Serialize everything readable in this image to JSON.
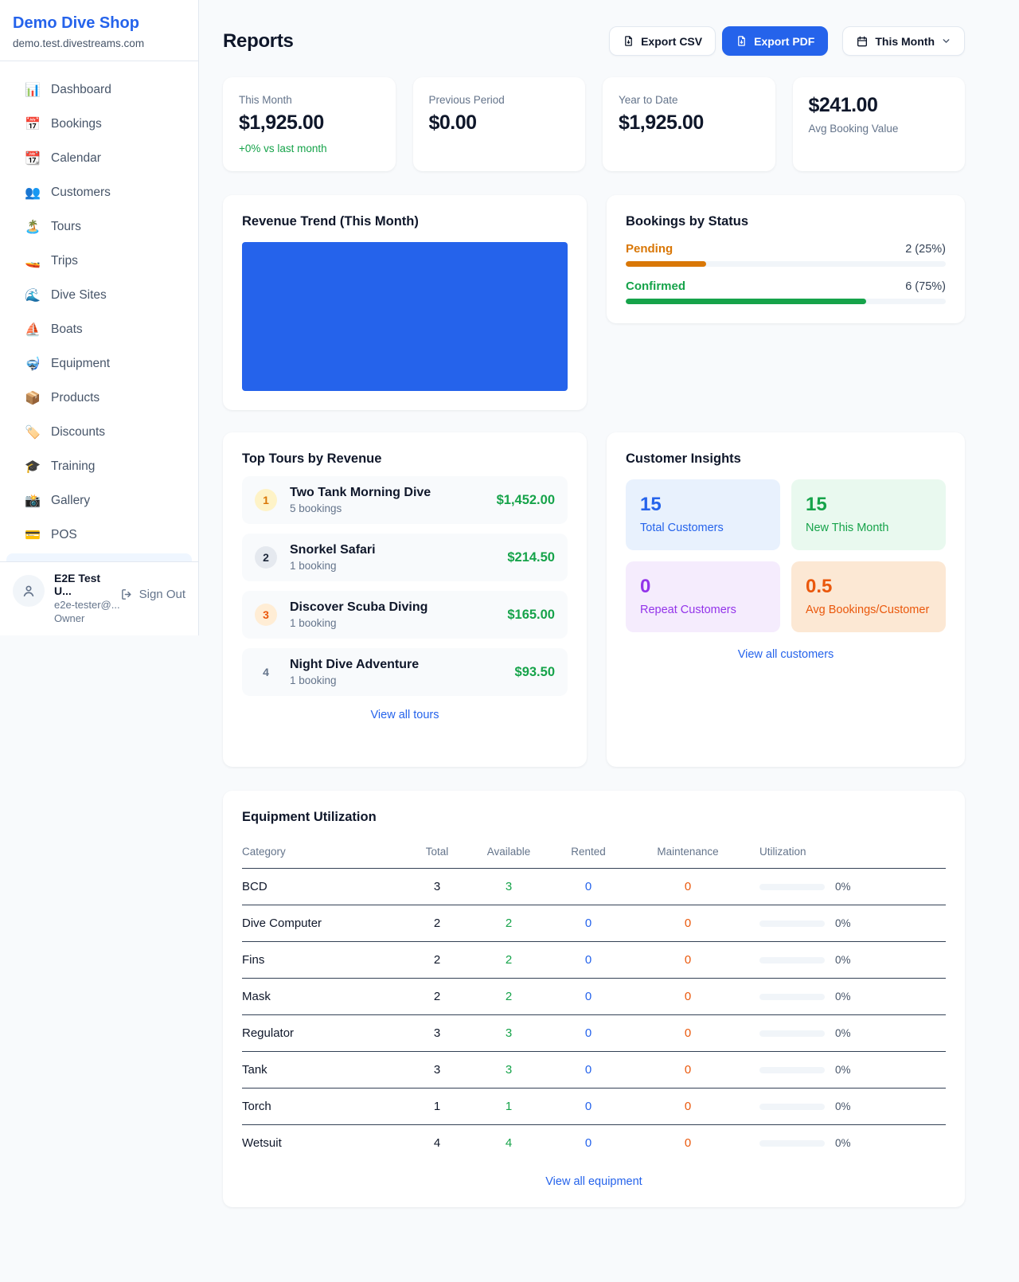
{
  "colors": {
    "accent": "#2563eb",
    "positive_green": "#16a34a",
    "pending_orange": "#d97706",
    "maintenance_orange": "#ea580c",
    "repeat_purple": "#9333ea",
    "chart_bar_blue": "#2563eb"
  },
  "sidebar": {
    "shop_name": "Demo Dive Shop",
    "shop_domain": "demo.test.divestreams.com",
    "items": [
      {
        "icon": "📊",
        "label": "Dashboard"
      },
      {
        "icon": "📅",
        "label": "Bookings"
      },
      {
        "icon": "📆",
        "label": "Calendar"
      },
      {
        "icon": "👥",
        "label": "Customers"
      },
      {
        "icon": "🏝️",
        "label": "Tours"
      },
      {
        "icon": "🚤",
        "label": "Trips"
      },
      {
        "icon": "🌊",
        "label": "Dive Sites"
      },
      {
        "icon": "⛵",
        "label": "Boats"
      },
      {
        "icon": "🤿",
        "label": "Equipment"
      },
      {
        "icon": "📦",
        "label": "Products"
      },
      {
        "icon": "🏷️",
        "label": "Discounts"
      },
      {
        "icon": "🎓",
        "label": "Training"
      },
      {
        "icon": "📸",
        "label": "Gallery"
      },
      {
        "icon": "💳",
        "label": "POS"
      }
    ],
    "user": {
      "name": "E2E Test U...",
      "email": "e2e-tester@...",
      "role": "Owner",
      "sign_out": "Sign Out"
    }
  },
  "header": {
    "title": "Reports",
    "export_csv": "Export CSV",
    "export_pdf": "Export PDF",
    "period": "This Month"
  },
  "stats": [
    {
      "label": "This Month",
      "value": "$1,925.00",
      "delta": "+0% vs last month"
    },
    {
      "label": "Previous Period",
      "value": "$0.00"
    },
    {
      "label": "Year to Date",
      "value": "$1,925.00"
    },
    {
      "label": "Avg Booking Value",
      "value": "$241.00"
    }
  ],
  "revenue_trend": {
    "title": "Revenue Trend (This Month)",
    "bar_color": "#2563eb",
    "note": "single full-width bar, all revenue in one period"
  },
  "bookings_by_status": {
    "title": "Bookings by Status",
    "rows": [
      {
        "label": "Pending",
        "count_text": "2 (25%)",
        "percent": 25,
        "color": "#d97706"
      },
      {
        "label": "Confirmed",
        "count_text": "6 (75%)",
        "percent": 75,
        "color": "#16a34a"
      }
    ]
  },
  "top_tours": {
    "title": "Top Tours by Revenue",
    "rows": [
      {
        "rank": "1",
        "badge_bg": "#fef3c7",
        "badge_color": "#d97706",
        "name": "Two Tank Morning Dive",
        "bookings": "5 bookings",
        "revenue": "$1,452.00"
      },
      {
        "rank": "2",
        "badge_bg": "#e5e9ef",
        "badge_color": "#1e293b",
        "name": "Snorkel Safari",
        "bookings": "1 booking",
        "revenue": "$214.50"
      },
      {
        "rank": "3",
        "badge_bg": "#ffedd5",
        "badge_color": "#ea580c",
        "name": "Discover Scuba Diving",
        "bookings": "1 booking",
        "revenue": "$165.00"
      },
      {
        "rank": "4",
        "badge_bg": "transparent",
        "badge_color": "#64748b",
        "name": "Night Dive Adventure",
        "bookings": "1 booking",
        "revenue": "$93.50"
      }
    ],
    "view_all": "View all tours"
  },
  "customer_insights": {
    "title": "Customer Insights",
    "tiles": [
      {
        "value": "15",
        "label": "Total Customers",
        "color": "#2563eb",
        "bg": "#e8f1fd"
      },
      {
        "value": "15",
        "label": "New This Month",
        "color": "#16a34a",
        "bg": "#e9f9ef"
      },
      {
        "value": "0",
        "label": "Repeat Customers",
        "color": "#9333ea",
        "bg": "#f5ecfd"
      },
      {
        "value": "0.5",
        "label": "Avg Bookings/Customer",
        "color": "#ea580c",
        "bg": "#fce8d4"
      }
    ],
    "view_all": "View all customers"
  },
  "equipment": {
    "title": "Equipment Utilization",
    "columns": [
      "Category",
      "Total",
      "Available",
      "Rented",
      "Maintenance",
      "Utilization"
    ],
    "rows": [
      {
        "category": "BCD",
        "total": "3",
        "available": "3",
        "rented": "0",
        "maintenance": "0",
        "utilization": "0%",
        "utilization_percent": 0
      },
      {
        "category": "Dive Computer",
        "total": "2",
        "available": "2",
        "rented": "0",
        "maintenance": "0",
        "utilization": "0%",
        "utilization_percent": 0
      },
      {
        "category": "Fins",
        "total": "2",
        "available": "2",
        "rented": "0",
        "maintenance": "0",
        "utilization": "0%",
        "utilization_percent": 0
      },
      {
        "category": "Mask",
        "total": "2",
        "available": "2",
        "rented": "0",
        "maintenance": "0",
        "utilization": "0%",
        "utilization_percent": 0
      },
      {
        "category": "Regulator",
        "total": "3",
        "available": "3",
        "rented": "0",
        "maintenance": "0",
        "utilization": "0%",
        "utilization_percent": 0
      },
      {
        "category": "Tank",
        "total": "3",
        "available": "3",
        "rented": "0",
        "maintenance": "0",
        "utilization": "0%",
        "utilization_percent": 0
      },
      {
        "category": "Torch",
        "total": "1",
        "available": "1",
        "rented": "0",
        "maintenance": "0",
        "utilization": "0%",
        "utilization_percent": 0
      },
      {
        "category": "Wetsuit",
        "total": "4",
        "available": "4",
        "rented": "0",
        "maintenance": "0",
        "utilization": "0%",
        "utilization_percent": 0
      }
    ],
    "view_all": "View all equipment"
  }
}
